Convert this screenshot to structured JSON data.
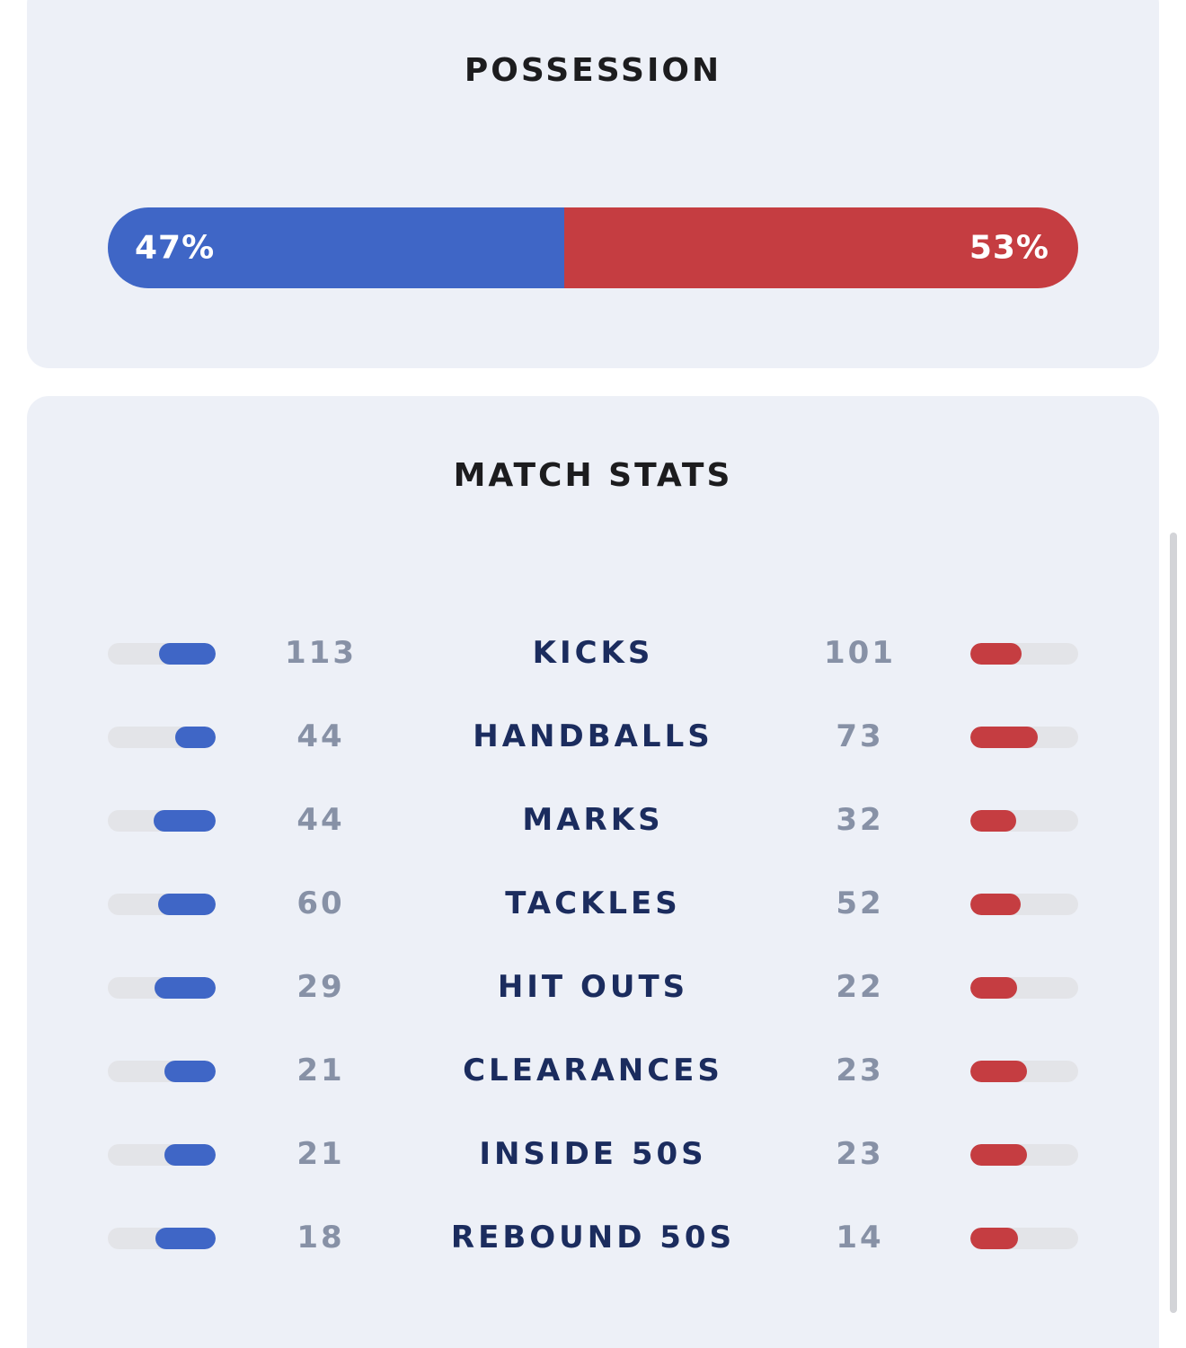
{
  "possession": {
    "title": "POSSESSION",
    "home_pct": 47,
    "away_pct": 53,
    "home_label": "47%",
    "away_label": "53%",
    "home_color": "#3f66c6",
    "away_color": "#c53d41"
  },
  "match_stats": {
    "title": "MATCH STATS",
    "rows": [
      {
        "label": "KICKS",
        "home": "113",
        "away": "101"
      },
      {
        "label": "HANDBALLS",
        "home": "44",
        "away": "73"
      },
      {
        "label": "MARKS",
        "home": "44",
        "away": "32"
      },
      {
        "label": "TACKLES",
        "home": "60",
        "away": "52"
      },
      {
        "label": "HIT OUTS",
        "home": "29",
        "away": "22"
      },
      {
        "label": "CLEARANCES",
        "home": "21",
        "away": "23"
      },
      {
        "label": "INSIDE 50S",
        "home": "21",
        "away": "23"
      },
      {
        "label": "REBOUND 50S",
        "home": "18",
        "away": "14"
      }
    ]
  }
}
